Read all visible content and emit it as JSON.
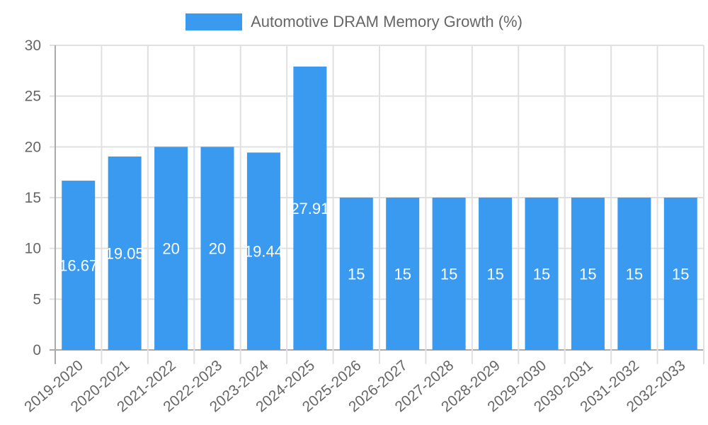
{
  "legend": {
    "label": "Automotive DRAM Memory Growth (%)",
    "color": "#3a9aef"
  },
  "chart_data": {
    "type": "bar",
    "title": "",
    "xlabel": "",
    "ylabel": "",
    "ylim": [
      0,
      30
    ],
    "yticks": [
      0,
      5,
      10,
      15,
      20,
      25,
      30
    ],
    "grid": true,
    "legend_position": "top",
    "categories": [
      "2019-2020",
      "2020-2021",
      "2021-2022",
      "2022-2023",
      "2023-2024",
      "2024-2025",
      "2025-2026",
      "2026-2027",
      "2027-2028",
      "2028-2029",
      "2029-2030",
      "2030-2031",
      "2031-2032",
      "2032-2033"
    ],
    "series": [
      {
        "name": "Automotive DRAM Memory Growth (%)",
        "color": "#3a9aef",
        "values": [
          16.67,
          19.05,
          20,
          20,
          19.44,
          27.91,
          15,
          15,
          15,
          15,
          15,
          15,
          15,
          15
        ]
      }
    ],
    "data_labels": [
      "16.67",
      "19.05",
      "20",
      "20",
      "19.44",
      "27.91",
      "15",
      "15",
      "15",
      "15",
      "15",
      "15",
      "15",
      "15"
    ]
  }
}
